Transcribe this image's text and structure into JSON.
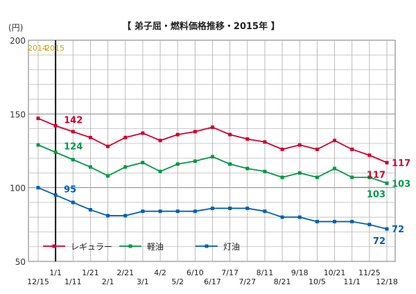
{
  "chart_data": {
    "type": "line",
    "title": "【 弟子屈・燃料価格推移・2015年 】",
    "yunit": "(円)",
    "ylim": [
      50,
      200
    ],
    "yticks": [
      50,
      100,
      150,
      200
    ],
    "grid": true,
    "year_labels": [
      {
        "text": "2014",
        "index": 0
      },
      {
        "text": "2015",
        "index": 1
      }
    ],
    "x": [
      "12/15",
      "1/1",
      "1/11",
      "1/21",
      "2/1",
      "2/21",
      "3/1",
      "4/2",
      "5/2",
      "6/10",
      "6/17",
      "7/17",
      "7/27",
      "8/11",
      "8/21",
      "9/18",
      "10/5",
      "10/21",
      "11/1",
      "11/25",
      "12/18"
    ],
    "legend_position": "bottom-left",
    "series": [
      {
        "name": "レギュラー",
        "color": "#d2002e",
        "values": [
          147,
          142,
          138,
          134,
          128,
          134,
          137,
          132,
          136,
          138,
          141,
          136,
          133,
          131,
          126,
          129,
          126,
          132,
          126,
          122,
          117
        ]
      },
      {
        "name": "軽油",
        "color": "#009944",
        "values": [
          129,
          124,
          119,
          114,
          108,
          114,
          117,
          111,
          116,
          118,
          121,
          116,
          113,
          111,
          107,
          110,
          107,
          113,
          107,
          107,
          103
        ]
      },
      {
        "name": "灯油",
        "color": "#0060b0",
        "values": [
          100,
          95,
          90,
          85,
          81,
          81,
          84,
          84,
          84,
          84,
          86,
          86,
          86,
          84,
          80,
          80,
          77,
          77,
          77,
          75,
          72
        ]
      }
    ],
    "annotations": [
      {
        "series": 0,
        "index": 1,
        "text": "142"
      },
      {
        "series": 1,
        "index": 1,
        "text": "124"
      },
      {
        "series": 2,
        "index": 1,
        "text": "95"
      },
      {
        "series": 0,
        "index": 20,
        "text": "117",
        "duplicate": "117"
      },
      {
        "series": 1,
        "index": 20,
        "text": "103",
        "duplicate": "103"
      },
      {
        "series": 2,
        "index": 20,
        "text": "72",
        "duplicate": "72"
      }
    ]
  }
}
